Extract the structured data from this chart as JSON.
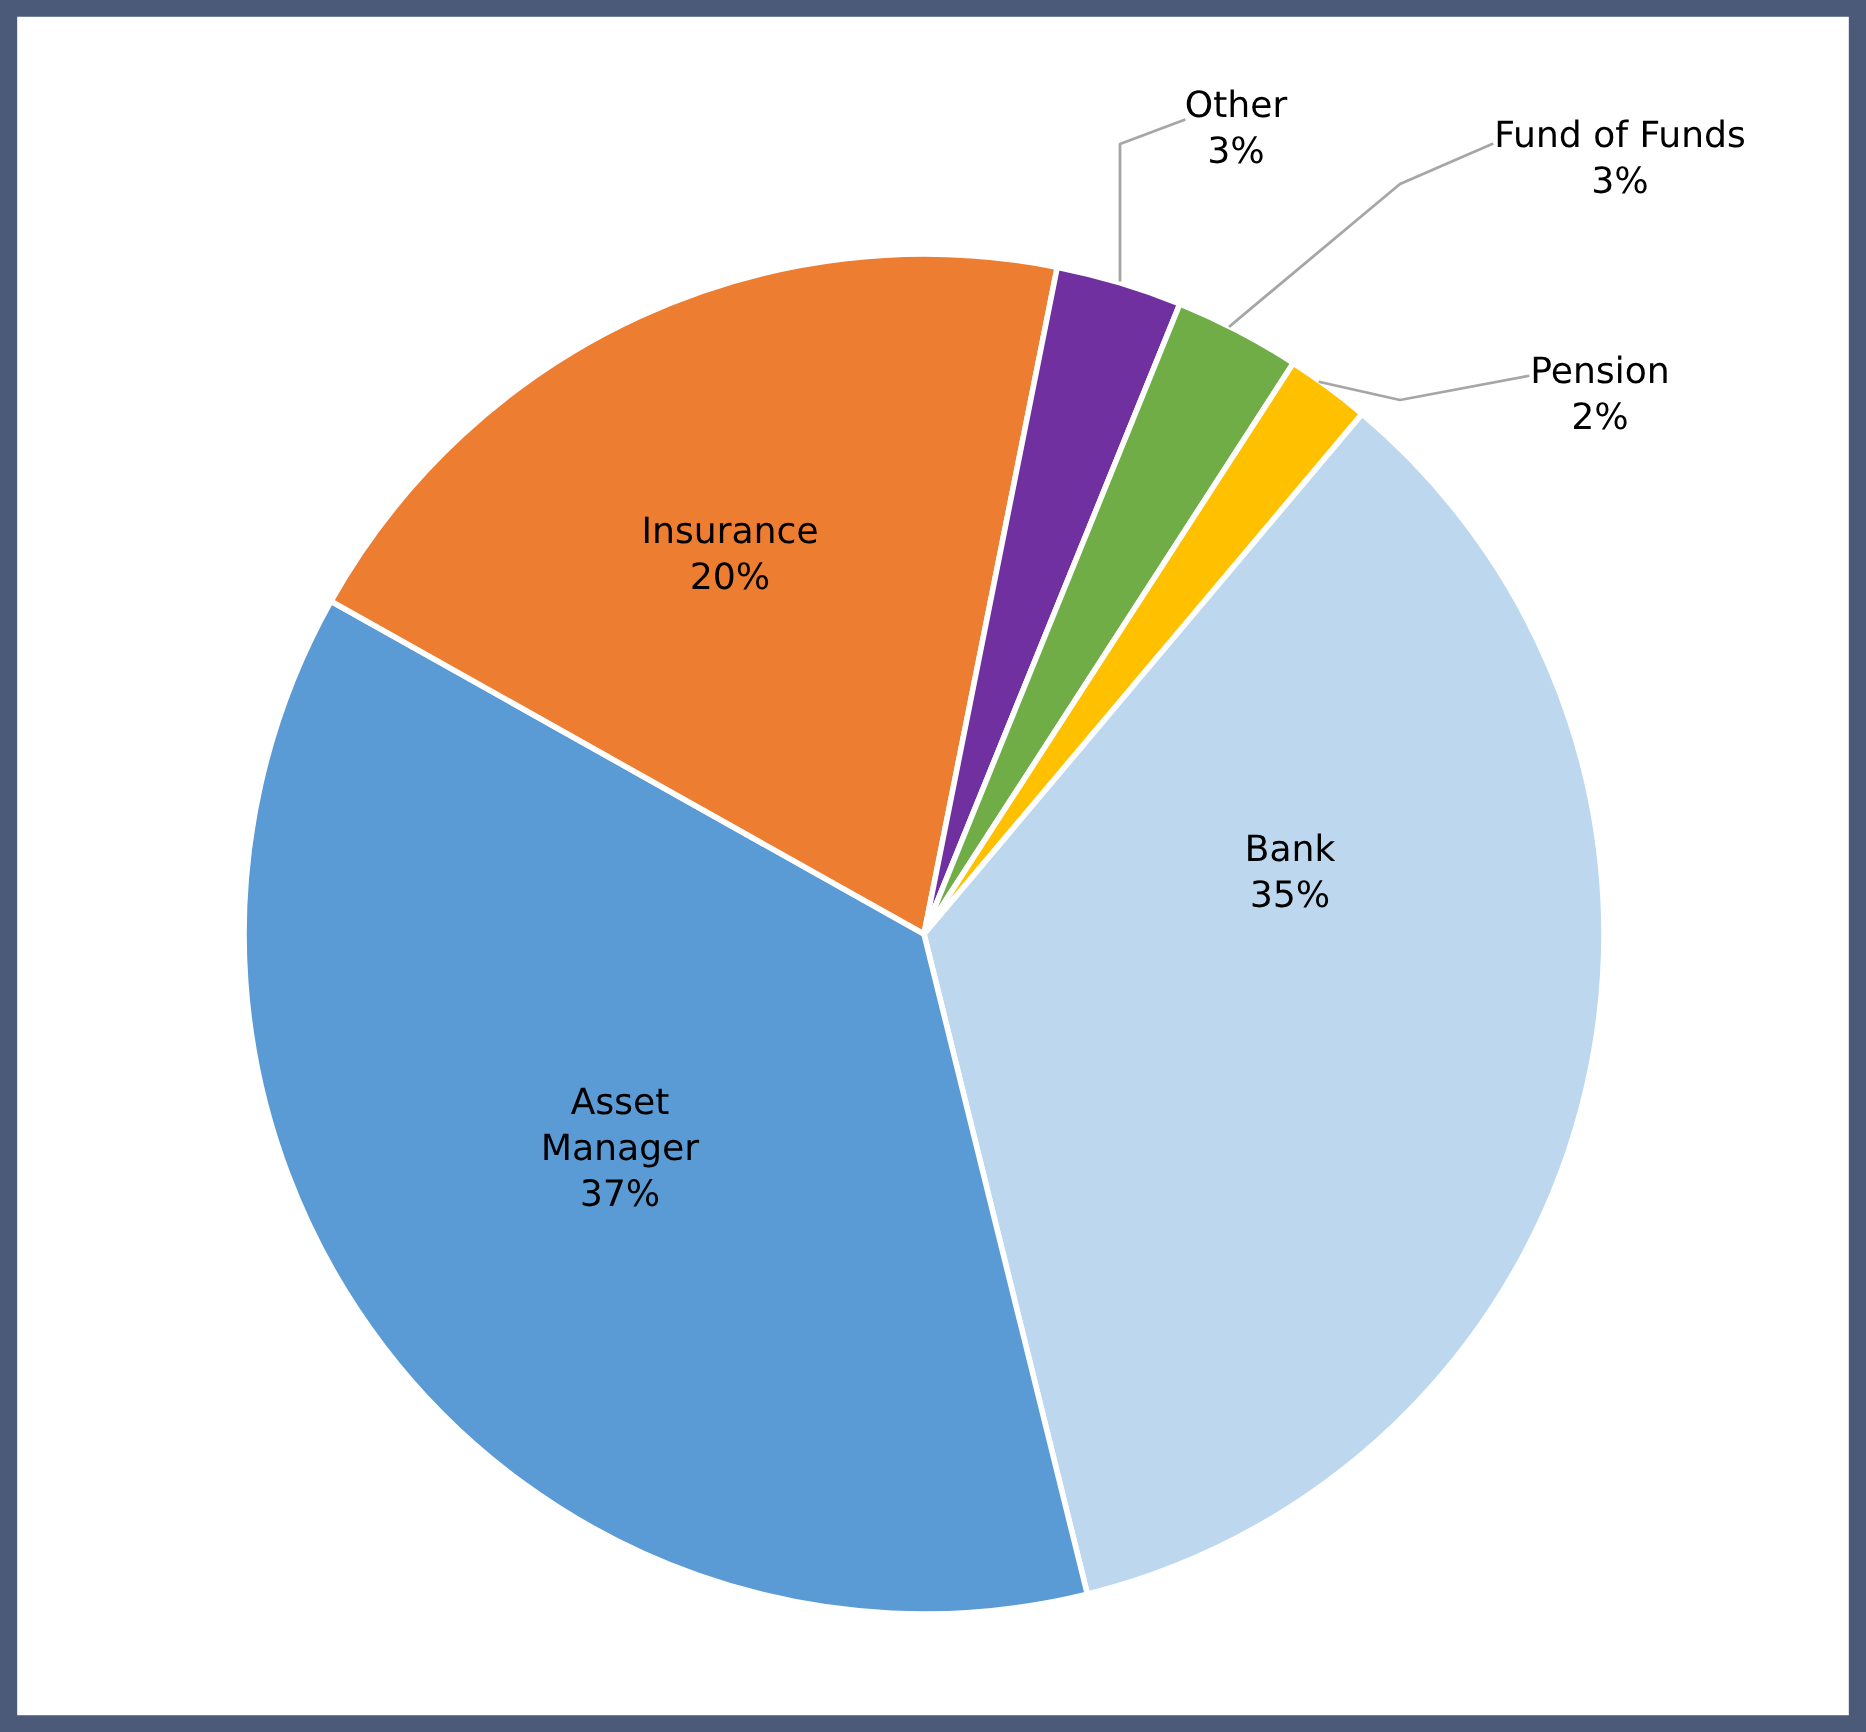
{
  "chart_data": {
    "type": "pie",
    "categories": [
      "Bank",
      "Asset\nManager",
      "Insurance",
      "Other",
      "Fund of Funds",
      "Pension"
    ],
    "values": [
      35,
      37,
      20,
      3,
      3,
      2
    ],
    "value_labels": [
      "35%",
      "37%",
      "20%",
      "3%",
      "3%",
      "2%"
    ],
    "colors": [
      "#bdd7ee",
      "#5b9bd5",
      "#ed7d31",
      "#7030a0",
      "#70ad47",
      "#ffc000"
    ]
  }
}
